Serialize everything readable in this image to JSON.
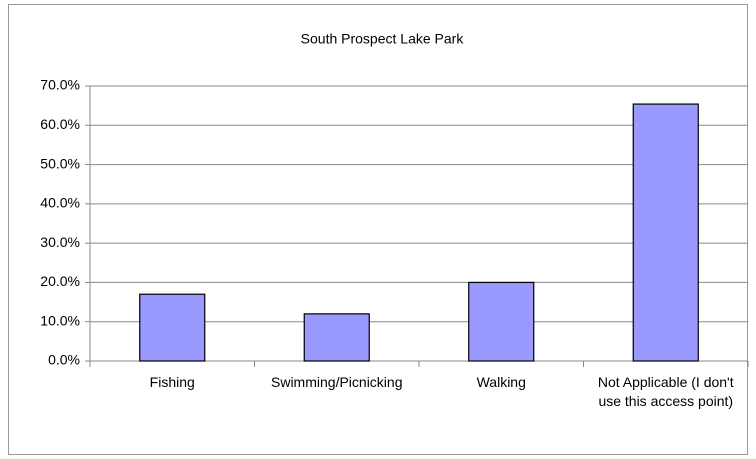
{
  "chart_data": {
    "type": "bar",
    "title": "South Prospect Lake Park",
    "categories": [
      "Fishing",
      "Swimming/Picnicking",
      "Walking",
      "Not Applicable (I don't use this access point)"
    ],
    "values": [
      17,
      12,
      20,
      65.4
    ],
    "color": "#9999ff",
    "ylim": [
      0,
      70
    ],
    "yticks": [
      {
        "value": 0,
        "label": "0.0%"
      },
      {
        "value": 10,
        "label": "10.0%"
      },
      {
        "value": 20,
        "label": "20.0%"
      },
      {
        "value": 30,
        "label": "30.0%"
      },
      {
        "value": 40,
        "label": "40.0%"
      },
      {
        "value": 50,
        "label": "50.0%"
      },
      {
        "value": 60,
        "label": "60.0%"
      },
      {
        "value": 70,
        "label": "70.0%"
      }
    ],
    "grid": true
  }
}
